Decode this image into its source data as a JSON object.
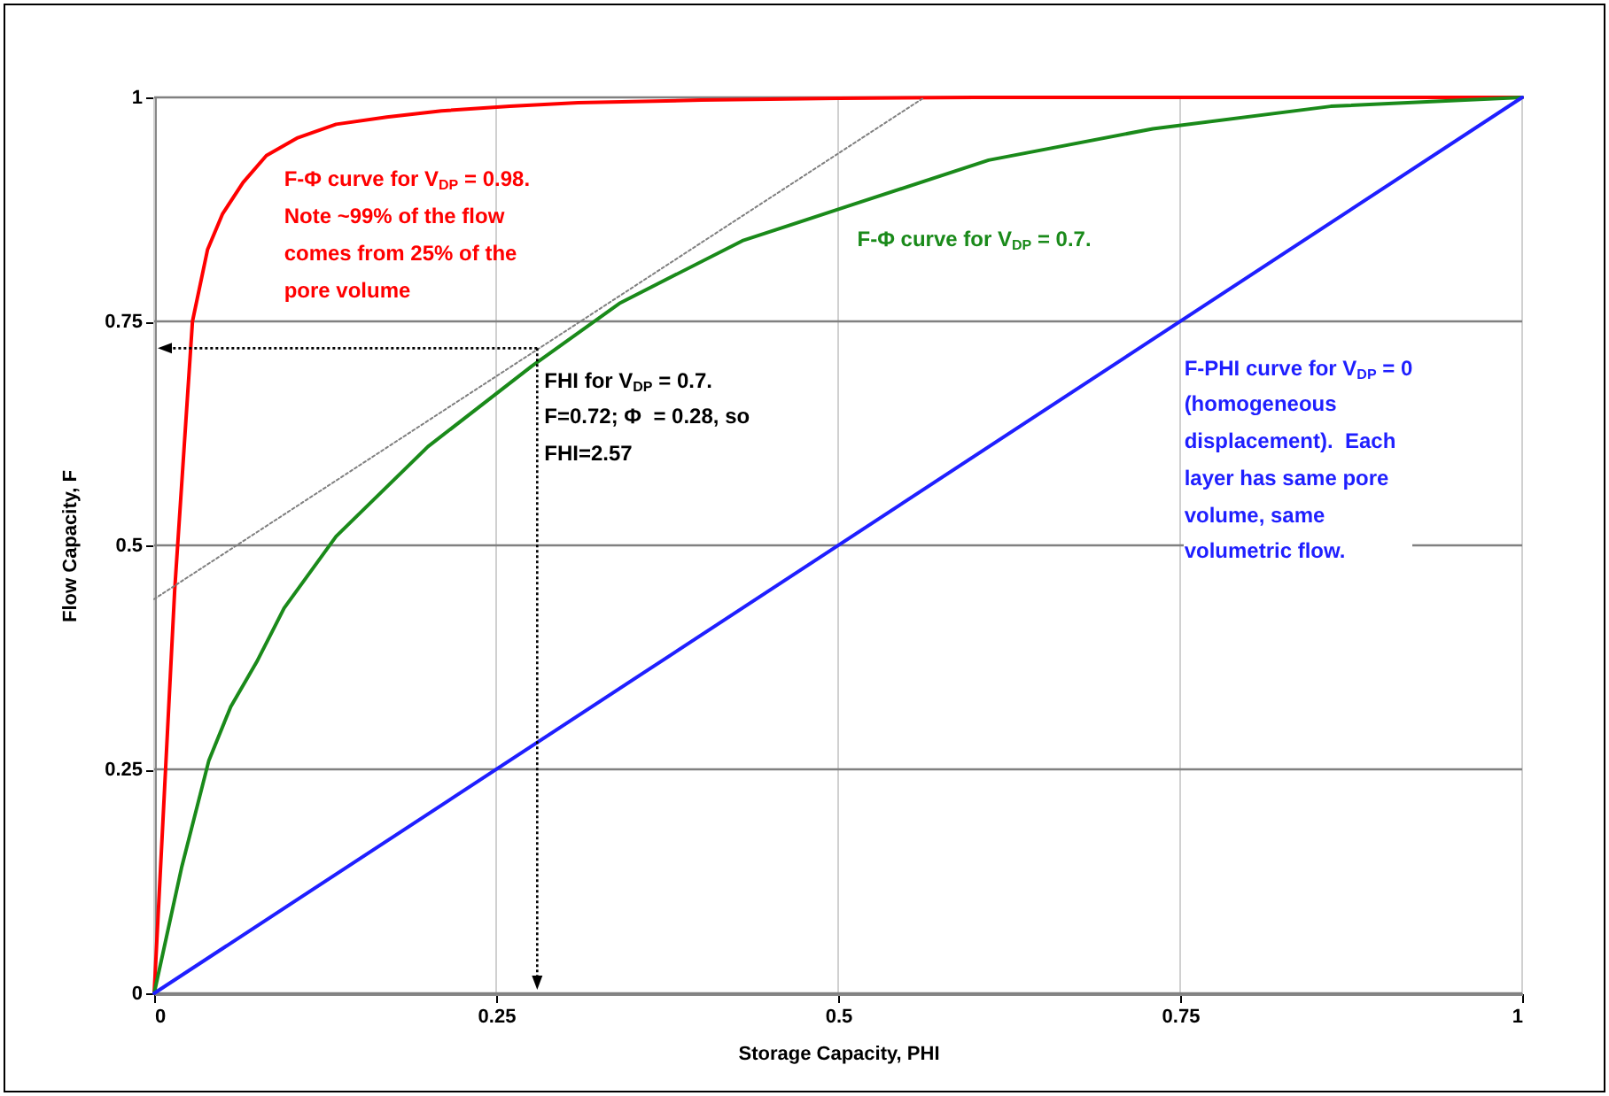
{
  "chart_data": {
    "type": "line",
    "xlabel": "Storage Capacity, PHI",
    "ylabel": "Flow Capacity, F",
    "xlim": [
      0,
      1
    ],
    "xticks": [
      0,
      0.25,
      0.5,
      0.75,
      1
    ],
    "ylim": [
      0,
      1
    ],
    "yticks": [
      0,
      0.25,
      0.5,
      0.75,
      1
    ],
    "grid": true,
    "marker": "none",
    "line_style": "solid",
    "series": [
      {
        "name": "F-Φ curve for V$_{DP}$ = 0.98.\nNote ~99% of the flow\ncomes from 25% of the\npore volume",
        "color": "#ff0000",
        "x": [
          0,
          0.015,
          0.028,
          0.039,
          0.05,
          0.065,
          0.082,
          0.105,
          0.133,
          0.17,
          0.21,
          0.26,
          0.31,
          0.4,
          0.5,
          0.6,
          0.8,
          1
        ],
        "values": [
          0,
          0.45,
          0.75,
          0.83,
          0.87,
          0.905,
          0.935,
          0.955,
          0.97,
          0.978,
          0.985,
          0.99,
          0.994,
          0.997,
          0.999,
          1,
          1,
          1
        ]
      },
      {
        "name": "F-Φ curve for V$_{DP}$ = 0.7.",
        "color": "#1a8a1a",
        "x": [
          0,
          0.02,
          0.04,
          0.056,
          0.075,
          0.095,
          0.133,
          0.2,
          0.276,
          0.34,
          0.43,
          0.51,
          0.61,
          0.73,
          0.86,
          1
        ],
        "values": [
          0,
          0.14,
          0.26,
          0.32,
          0.37,
          0.43,
          0.51,
          0.61,
          0.7,
          0.77,
          0.84,
          0.88,
          0.93,
          0.965,
          0.99,
          1
        ]
      },
      {
        "name": "F-PHI curve for V$_{DP}$ = 0\n(homogeneous\ndisplacement).  Each\nlayer has same pore\nvolume, same\nvolumetric flow.",
        "color": "#1f1fff",
        "x": [
          0,
          1
        ],
        "values": [
          0,
          1
        ]
      },
      {
        "color": "#808080",
        "line_style": "dotted",
        "x": [
          0,
          0.563
        ],
        "values": [
          0.44,
          1
        ]
      }
    ],
    "annotations": [
      {
        "text": "FHI for V$_{DP}$ = 0.7.\nF=0.72; Φ  = 0.28, so\nFHI=2.57",
        "x": 0.28,
        "y": 0.72
      }
    ]
  }
}
